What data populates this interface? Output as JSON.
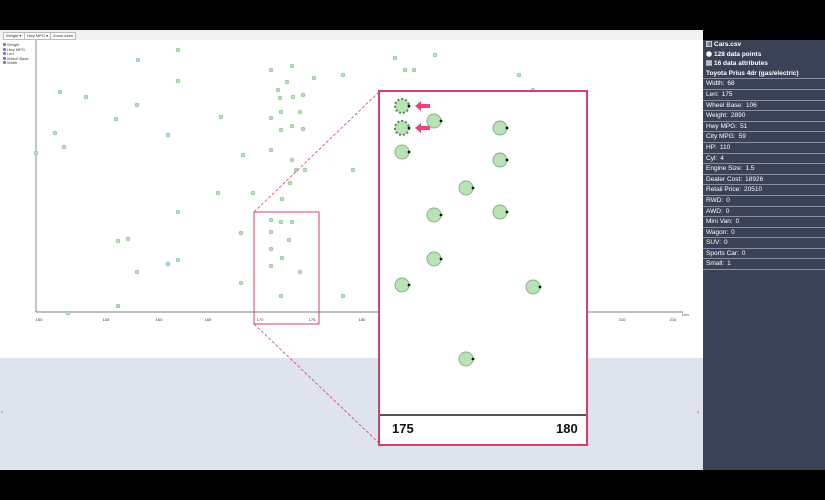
{
  "toolbar": {
    "items": [
      "Weight ▾",
      "Hwy MPG ▾",
      "Zoom Axes"
    ]
  },
  "legend": {
    "items": [
      "Weight",
      "Hwy MPG",
      "Len",
      "Wheel Base",
      "Width"
    ]
  },
  "chart_data": {
    "type": "scatter",
    "xlabel": "Len",
    "x_ticks": [
      "150",
      "155",
      "160",
      "165",
      "170",
      "175",
      "180",
      "185",
      "210",
      "215"
    ],
    "zoom_ticks": [
      "175",
      "180"
    ],
    "marker_color": "#b9e3b7",
    "highlight_color": "#e8467a"
  },
  "sidebar": {
    "file": "Cars.csv",
    "points": "128 data points",
    "attributes": "16 data attributes",
    "title": "Toyota Prius 4dr (gas/electric)",
    "rows": [
      {
        "label": "Width:",
        "value": "68"
      },
      {
        "label": "Len:",
        "value": "175"
      },
      {
        "label": "Wheel Base:",
        "value": "106"
      },
      {
        "label": "Weight:",
        "value": "2890"
      },
      {
        "label": "Hwy MPG:",
        "value": "51"
      },
      {
        "label": "City MPG:",
        "value": "59"
      },
      {
        "label": "HP:",
        "value": "110"
      },
      {
        "label": "Cyl:",
        "value": "4"
      },
      {
        "label": "Engine Size:",
        "value": "1.5"
      },
      {
        "label": "Dealer Cost:",
        "value": "18926"
      },
      {
        "label": "Retail Price:",
        "value": "20510"
      },
      {
        "label": "RWD:",
        "value": "0"
      },
      {
        "label": "AWD:",
        "value": "0"
      },
      {
        "label": "Mini Van:",
        "value": "0"
      },
      {
        "label": "Wagon:",
        "value": "0"
      },
      {
        "label": "SUV:",
        "value": "0"
      },
      {
        "label": "Sports Car:",
        "value": "0"
      },
      {
        "label": "Small:",
        "value": "1"
      }
    ]
  }
}
